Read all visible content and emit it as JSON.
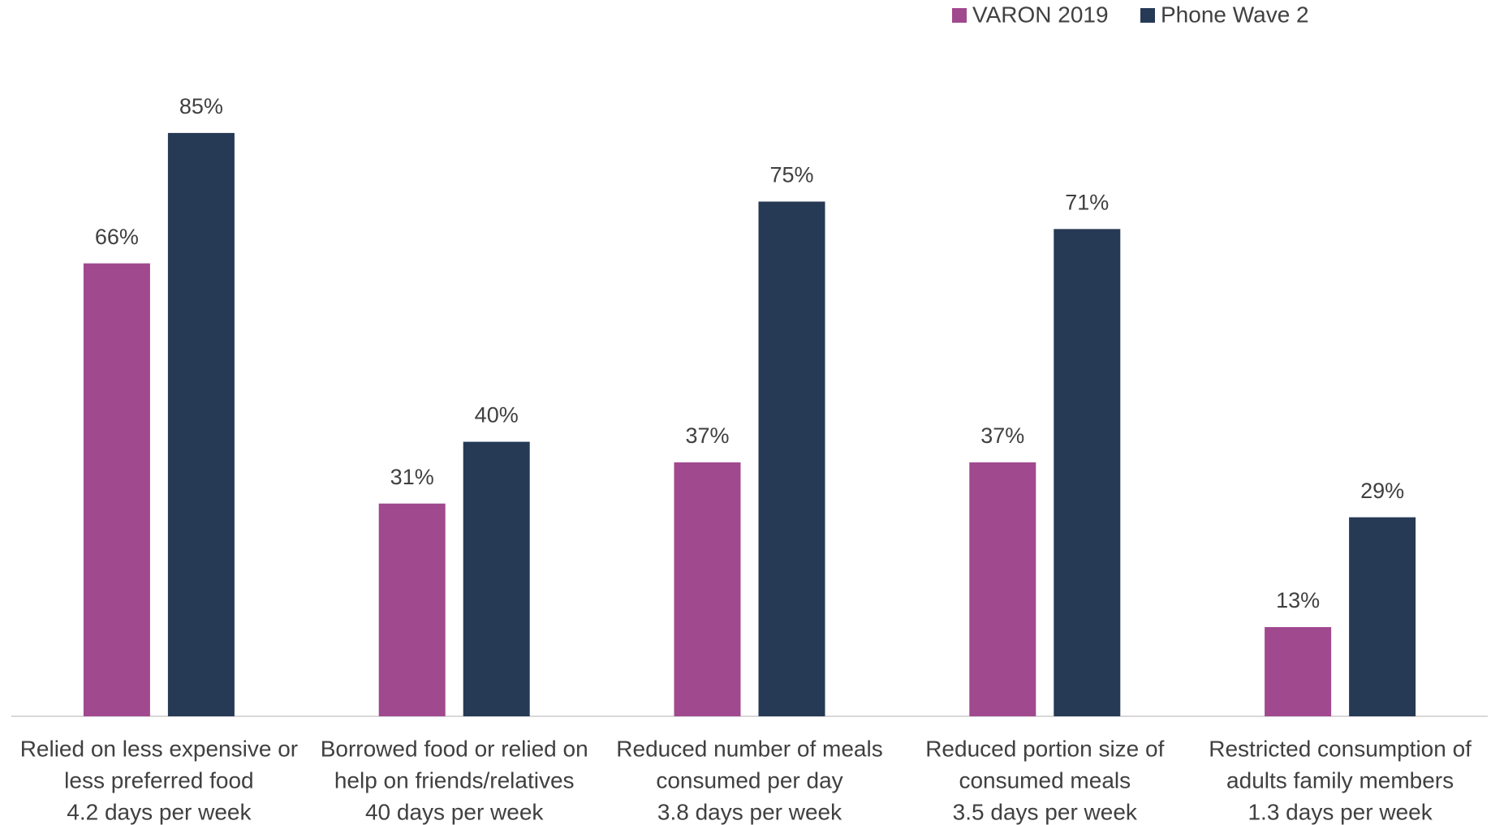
{
  "chart_data": {
    "type": "bar",
    "categories": [
      [
        "Relied on less expensive or",
        "less preferred food",
        "4.2 days per week"
      ],
      [
        "Borrowed food or relied on",
        "help on friends/relatives",
        "40 days per week"
      ],
      [
        "Reduced number of meals",
        "consumed per day",
        "3.8 days per week"
      ],
      [
        "Reduced portion size of",
        "consumed meals",
        "3.5 days per week"
      ],
      [
        "Restricted consumption of",
        "adults family members",
        "1.3 days per week"
      ]
    ],
    "series": [
      {
        "name": "VARON 2019",
        "color": "#a0498f",
        "values": [
          66,
          31,
          37,
          37,
          13
        ],
        "value_labels": [
          "66%",
          "31%",
          "37%",
          "37%",
          "13%"
        ]
      },
      {
        "name": "Phone Wave 2",
        "color": "#263a56",
        "values": [
          85,
          40,
          75,
          71,
          29
        ],
        "value_labels": [
          "85%",
          "40%",
          "75%",
          "71%",
          "29%"
        ]
      }
    ],
    "ylim": [
      0,
      100
    ],
    "legend": "top-right"
  }
}
